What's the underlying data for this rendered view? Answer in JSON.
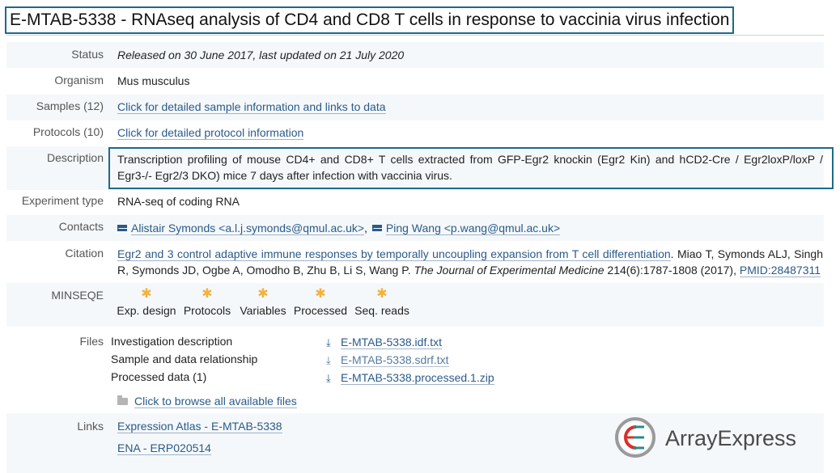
{
  "header": {
    "title": "E-MTAB-5338 - RNAseq analysis of CD4 and CD8 T cells in response to vaccinia virus infection"
  },
  "status": {
    "label": "Status",
    "value": "Released on 30 June 2017, last updated on 21 July 2020"
  },
  "organism": {
    "label": "Organism",
    "value": "Mus musculus"
  },
  "samples": {
    "label": "Samples (12)",
    "link": "Click for detailed sample information and links to data"
  },
  "protocols": {
    "label": "Protocols (10)",
    "link": "Click for detailed protocol information"
  },
  "description": {
    "label": "Description",
    "text": "Transcription profiling of mouse CD4+ and CD8+ T cells extracted from GFP-Egr2 knockin (Egr2 Kin) and hCD2-Cre / Egr2loxP/loxP / Egr3-/- Egr2/3 DKO) mice 7 days after infection with vaccinia virus."
  },
  "experiment_type": {
    "label": "Experiment type",
    "value": "RNA-seq of coding RNA"
  },
  "contacts": {
    "label": "Contacts",
    "items": [
      {
        "name": "Alistair Symonds <a.l.j.symonds@qmul.ac.uk>",
        "icon": "mail-icon"
      },
      {
        "name": "Ping Wang <p.wang@qmul.ac.uk>",
        "icon": "mail-icon"
      }
    ],
    "separator": ","
  },
  "citation": {
    "label": "Citation",
    "title_link": "Egr2 and 3 control adaptive immune responses by temporally uncoupling expansion from T cell differentiation",
    "authors": ". Miao T, Symonds ALJ, Singh R, Symonds JD, Ogbe A, Omodho B, Zhu B, Li S, Wang P. ",
    "journal": "The Journal of Experimental Medicine",
    "volume": " 214(6):1787-1808 (2017), ",
    "pmid": "PMID:28487311"
  },
  "minseqe": {
    "label": "MINSEQE",
    "items": [
      "Exp. design",
      "Protocols",
      "Variables",
      "Processed",
      "Seq. reads"
    ],
    "star_color": "#f4b23c"
  },
  "files": {
    "label": "Files",
    "rows": [
      {
        "label": "Investigation description",
        "file": "E-MTAB-5338.idf.txt"
      },
      {
        "label": "Sample and data relationship",
        "file": "E-MTAB-5338.sdrf.txt"
      },
      {
        "label": "Processed data (1)",
        "file": "E-MTAB-5338.processed.1.zip"
      }
    ],
    "browse_link": "Click to browse all available files"
  },
  "links": {
    "label": "Links",
    "items": [
      "Expression Atlas - E-MTAB-5338",
      "ENA - ERP020514"
    ]
  },
  "logo": {
    "text": "ArrayExpress",
    "colors": {
      "red": "#d8302a",
      "teal": "#2a8a8a"
    }
  },
  "colors": {
    "accent_border": "#1c6a8a",
    "link": "#2a5a8a",
    "row_shade": "#f5f8fa"
  }
}
